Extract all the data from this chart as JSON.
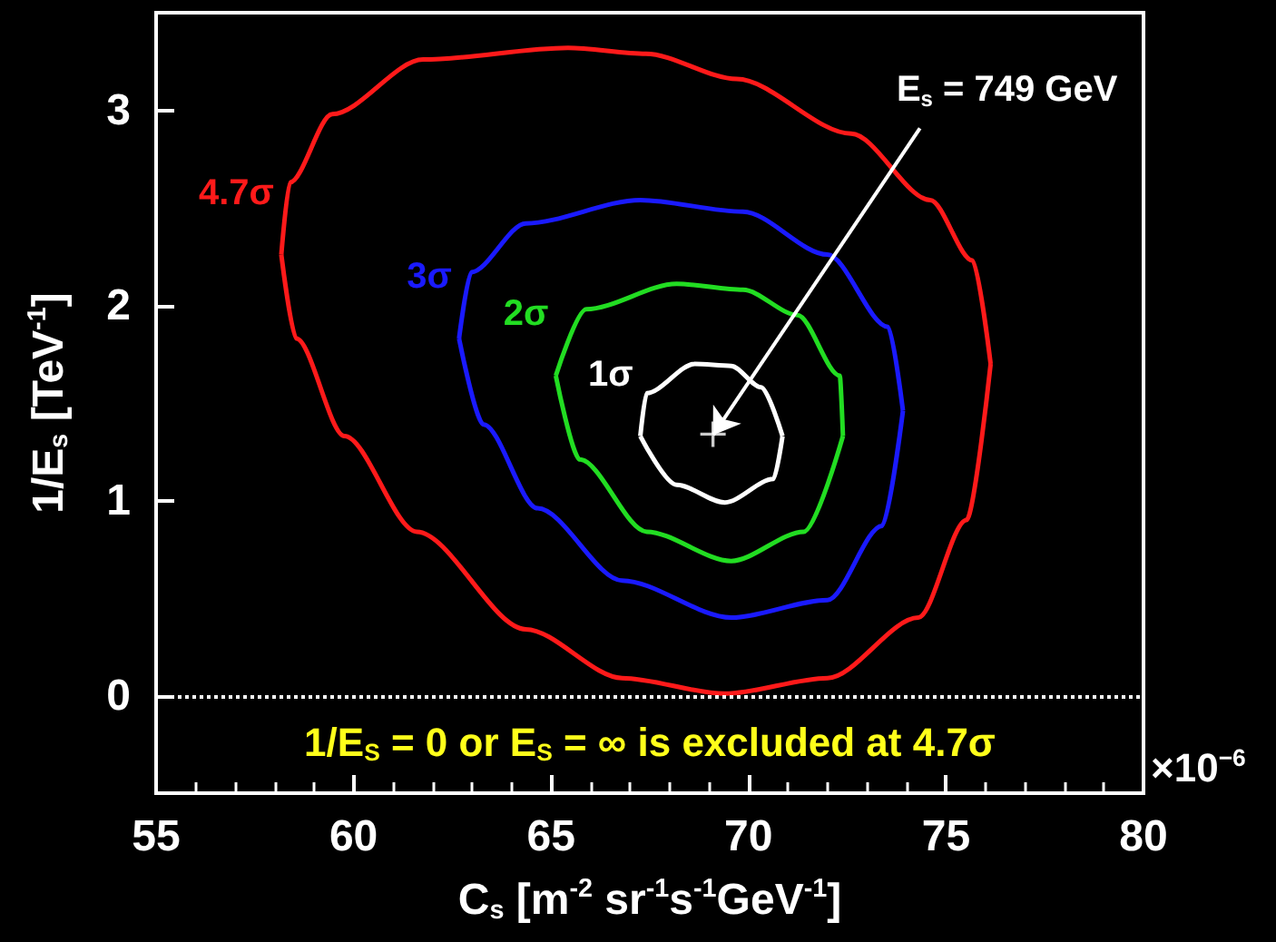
{
  "chart_data": {
    "type": "line",
    "xlabel": "C$_{s}$ [m$^{-2}$ sr$^{-1}$s$^{-1}$GeV$^{-1}$]",
    "ylabel": "1/E$_{s}$ [TeV$^{-1}$]",
    "xlim": [
      55,
      80
    ],
    "xticks": [
      55,
      60,
      65,
      70,
      75,
      80
    ],
    "ylim": [
      -0.5,
      3.5
    ],
    "yticks": [
      0,
      1,
      2,
      3
    ],
    "grid": false,
    "legend": false,
    "marker": "none",
    "series": [
      {
        "name": "4.7σ",
        "color": "#ff1a1a",
        "x": [
          58.17,
          58.39,
          59.46,
          61.76,
          65.43,
          67.4,
          69.7,
          72.6,
          74.6,
          75.67,
          76.13
        ],
        "values": [
          2.26,
          2.63,
          2.98,
          3.26,
          3.32,
          3.29,
          3.16,
          2.88,
          2.54,
          2.23,
          1.7
        ]
      },
      {
        "color": "#ff1a1a",
        "x": [
          58.17,
          58.55,
          59.77,
          61.6,
          64.36,
          66.8,
          69.4,
          72.0,
          74.3,
          75.52,
          76.13
        ],
        "values": [
          2.26,
          1.83,
          1.33,
          0.84,
          0.34,
          0.09,
          0.01,
          0.09,
          0.4,
          0.9,
          1.7
        ]
      },
      {
        "name": "3σ",
        "color": "#1a1aff",
        "x": [
          62.67,
          62.98,
          64.36,
          67.26,
          69.86,
          72.0,
          73.53,
          73.91
        ],
        "values": [
          1.83,
          2.17,
          2.42,
          2.54,
          2.48,
          2.26,
          1.89,
          1.46
        ]
      },
      {
        "color": "#1a1aff",
        "x": [
          62.67,
          63.29,
          64.66,
          66.8,
          69.56,
          72.0,
          73.38,
          73.91
        ],
        "values": [
          1.83,
          1.39,
          0.96,
          0.59,
          0.4,
          0.49,
          0.87,
          1.46
        ]
      },
      {
        "name": "2σ",
        "color": "#22dd22",
        "x": [
          65.12,
          65.89,
          68.18,
          69.86,
          71.24,
          72.31,
          72.39
        ],
        "values": [
          1.64,
          1.98,
          2.11,
          2.08,
          1.95,
          1.64,
          1.33
        ]
      },
      {
        "color": "#22dd22",
        "x": [
          65.12,
          65.73,
          67.42,
          69.56,
          71.4,
          72.39
        ],
        "values": [
          1.64,
          1.21,
          0.84,
          0.69,
          0.84,
          1.33
        ]
      },
      {
        "name": "1σ",
        "color": "#ffffff",
        "x": [
          67.26,
          67.42,
          68.64,
          69.56,
          70.32,
          70.86
        ],
        "values": [
          1.33,
          1.55,
          1.7,
          1.69,
          1.58,
          1.33
        ]
      },
      {
        "color": "#ffffff",
        "x": [
          67.26,
          68.18,
          69.4,
          70.63,
          70.86
        ],
        "values": [
          1.33,
          1.08,
          0.99,
          1.11,
          1.33
        ]
      },
      {
        "type": "scatter",
        "marker": "cross",
        "color": "#ffffff",
        "x": [
          69.1
        ],
        "values": [
          1.34
        ]
      }
    ],
    "ref_lines": [
      {
        "axis": "y",
        "value": 0,
        "color": "#ffffff",
        "line_style": "dotted"
      }
    ],
    "annotations": [
      {
        "text": "E$_{s}$ = 749 GeV",
        "x": 69.1,
        "y": 1.335
      },
      "1/E$_{S}$ = 0 or E$_{S}$ = ∞ is excluded at 4.7σ",
      "×10$^{−6}$"
    ]
  }
}
